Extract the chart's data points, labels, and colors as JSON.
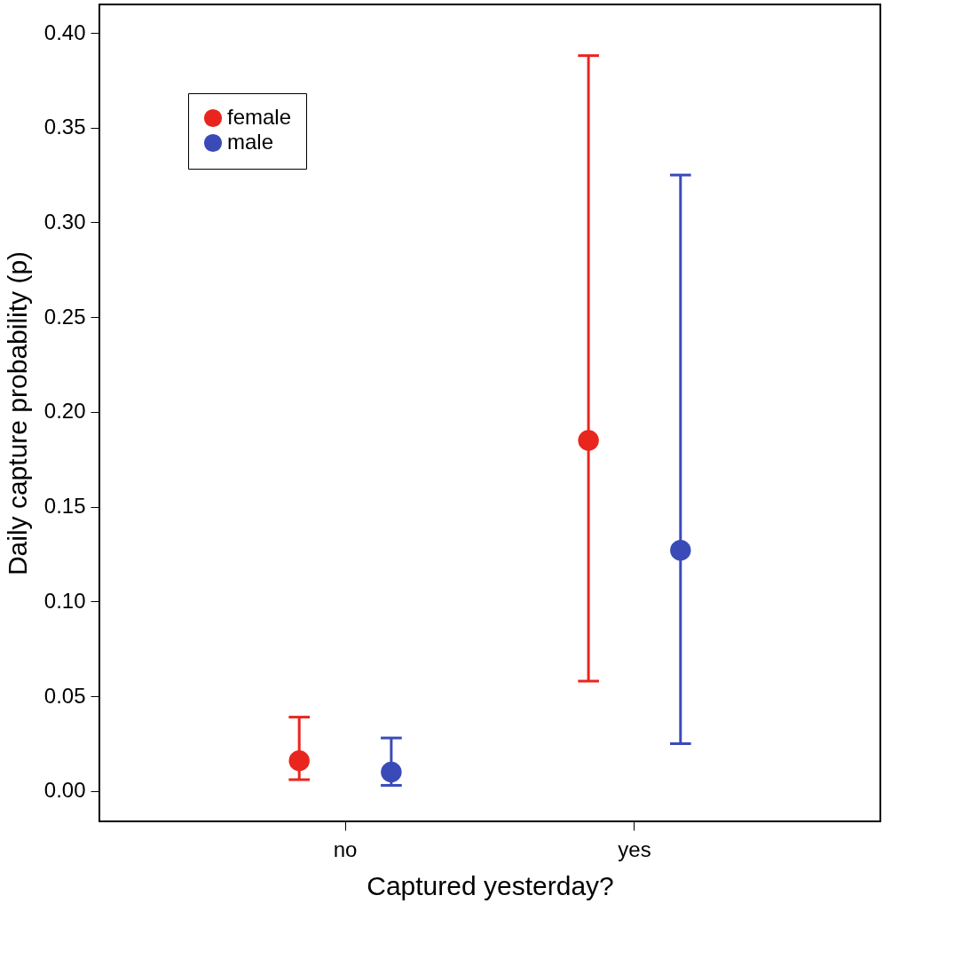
{
  "chart_data": {
    "type": "scatter",
    "xlabel": "Captured yesterday?",
    "ylabel": "Daily capture probability (p)",
    "categories": [
      "no",
      "yes"
    ],
    "series": [
      {
        "name": "female",
        "color": "#e8261e",
        "values": [
          0.016,
          0.185
        ],
        "errors": [
          [
            0.006,
            0.039
          ],
          [
            0.058,
            0.388
          ]
        ]
      },
      {
        "name": "male",
        "color": "#3a4bb8",
        "values": [
          0.01,
          0.127
        ],
        "errors": [
          [
            0.003,
            0.028
          ],
          [
            0.025,
            0.325
          ]
        ]
      }
    ],
    "ylim": [
      -0.016,
      0.415
    ],
    "yticks": [
      {
        "value": 0,
        "label": "0.00"
      },
      {
        "value": 0.05,
        "label": "0.05"
      },
      {
        "value": 0.1,
        "label": "0.10"
      },
      {
        "value": 0.15,
        "label": "0.15"
      },
      {
        "value": 0.2,
        "label": "0.20"
      },
      {
        "value": 0.25,
        "label": "0.25"
      },
      {
        "value": 0.3,
        "label": "0.30"
      },
      {
        "value": 0.35,
        "label": "0.35"
      },
      {
        "value": 0.4,
        "label": "0.40"
      }
    ],
    "marker": "circle",
    "grid": false,
    "legend": "top left"
  }
}
